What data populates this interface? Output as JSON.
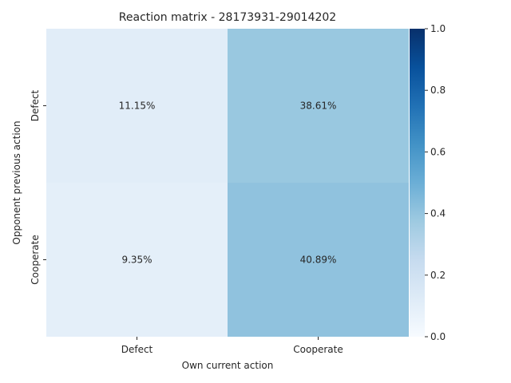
{
  "chart_data": {
    "type": "heatmap",
    "title": "Reaction matrix - 28173931-29014202",
    "xlabel": "Own current action",
    "ylabel": "Opponent previous action",
    "x_categories": [
      "Defect",
      "Cooperate"
    ],
    "y_categories": [
      "Defect",
      "Cooperate"
    ],
    "values": [
      [
        0.1115,
        0.3861
      ],
      [
        0.0935,
        0.4089
      ]
    ],
    "cell_labels": [
      [
        "11.15%",
        "38.61%"
      ],
      [
        "9.35%",
        "40.89%"
      ]
    ],
    "colormap": "Blues",
    "color_range": [
      0,
      1
    ],
    "colorbar_ticks": [
      "0.0",
      "0.2",
      "0.4",
      "0.6",
      "0.8",
      "1.0"
    ],
    "grid": false
  }
}
